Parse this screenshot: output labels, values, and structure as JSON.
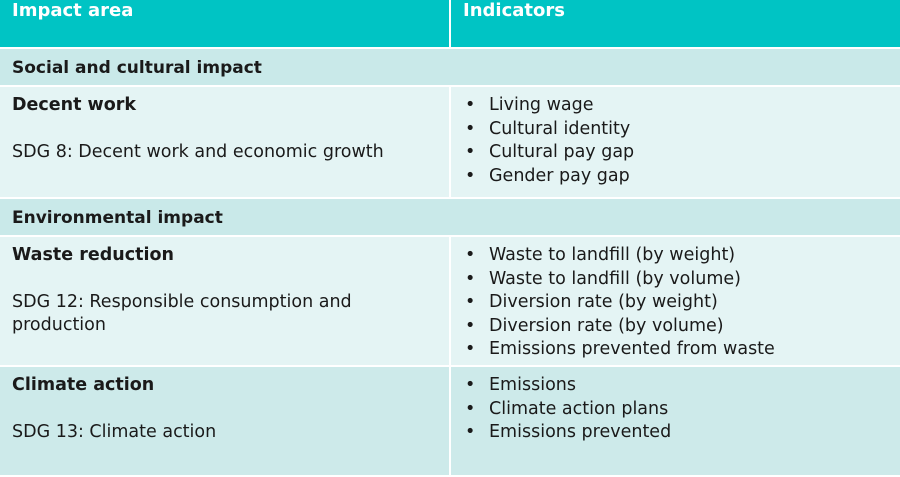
{
  "table": {
    "headers": [
      "Impact area",
      "Indicators"
    ],
    "sections": [
      {
        "title": "Social and cultural impact",
        "areas": [
          {
            "name": "Decent work",
            "sdg": "SDG 8: Decent work and economic growth",
            "indicators": [
              "Living wage",
              "Cultural identity",
              "Cultural pay gap",
              "Gender pay gap"
            ]
          }
        ]
      },
      {
        "title": "Environmental impact",
        "areas": [
          {
            "name": "Waste reduction",
            "sdg": "SDG 12: Responsible consumption and production",
            "indicators": [
              "Waste to landfill (by weight)",
              "Waste to landfill (by volume)",
              "Diversion rate (by weight)",
              "Diversion rate (by volume)",
              "Emissions prevented from waste"
            ]
          },
          {
            "name": "Climate action",
            "sdg": "SDG 13: Climate action",
            "indicators": [
              "Emissions",
              "Climate action plans",
              "Emissions prevented"
            ]
          }
        ]
      }
    ]
  },
  "colors": {
    "header_bg": "#00c4c4",
    "section_bg": "#c9e9e9",
    "row_light_bg": "#e4f4f4",
    "row_mid_bg": "#cdeaea"
  }
}
